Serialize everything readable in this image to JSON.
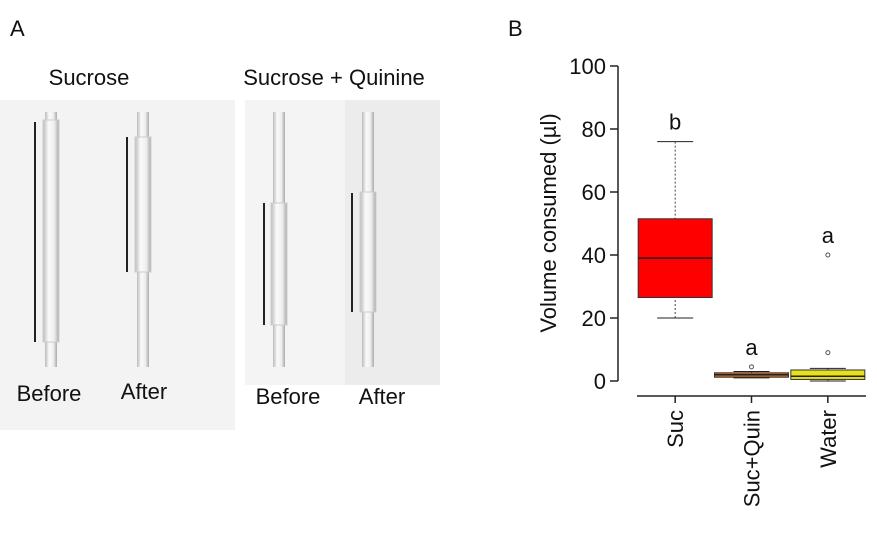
{
  "panel_labels": [
    "A",
    "B"
  ],
  "photo": {
    "groups": [
      {
        "title": "Sucrose",
        "labels": [
          "Before",
          "After"
        ]
      },
      {
        "title": "Sucrose + Quinine",
        "labels": [
          "Before",
          "After"
        ]
      }
    ]
  },
  "chart_data": {
    "type": "box",
    "y_label": "Volume consumed (µl)",
    "categories": [
      "Suc",
      "Suc+Quin",
      "Water"
    ],
    "boxes": [
      {
        "low": 20,
        "q1": 26.5,
        "median": 39,
        "q3": 51.5,
        "high": 76,
        "outliers": [],
        "color": "#ff0000",
        "letter": "b"
      },
      {
        "low": 1,
        "q1": 1.2,
        "median": 2,
        "q3": 2.6,
        "high": 3,
        "outliers": [
          4.5
        ],
        "color": "#d2691e",
        "letter": "a"
      },
      {
        "low": 0,
        "q1": 0.5,
        "median": 1.5,
        "q3": 3.5,
        "high": 4,
        "outliers": [
          9,
          40
        ],
        "color": "#e8e01a",
        "letter": "a"
      }
    ],
    "ylim": [
      0,
      100
    ],
    "yticks": [
      0,
      20,
      40,
      60,
      80,
      100
    ]
  }
}
